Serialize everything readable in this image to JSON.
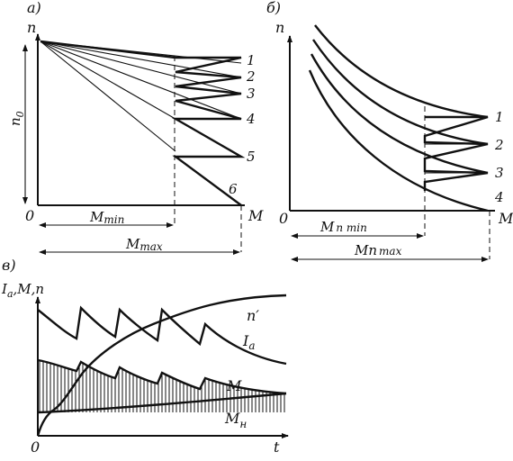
{
  "panel_a": {
    "tag": "а)",
    "y_axis": "n",
    "x_axis": "M",
    "origin": "0",
    "n0_label": "n",
    "n0_sub": "0",
    "mmin_label": "M",
    "mmin_sub": "min",
    "mmax_label": "M",
    "mmax_sub": "max",
    "curve_numbers": [
      "1",
      "2",
      "3",
      "4",
      "5",
      "6"
    ]
  },
  "panel_b": {
    "tag": "б)",
    "y_axis": "n",
    "x_axis": "M",
    "origin": "0",
    "mpmin_label": "M",
    "mpmin_sub": "п min",
    "mpmax_label": "Mп",
    "mpmax_sub": "max",
    "curve_numbers": [
      "1",
      "2",
      "3",
      "4"
    ]
  },
  "panel_c": {
    "tag": "в)",
    "y_axis_main": "I",
    "y_axis_sub": "a",
    "y_axis_rest": ",M,n",
    "x_axis": "t",
    "origin": "0",
    "label_n": "n′",
    "label_ia_main": "I",
    "label_ia_sub": "a",
    "label_m": "M",
    "label_mn_main": "M",
    "label_mn_sub": "н"
  }
}
